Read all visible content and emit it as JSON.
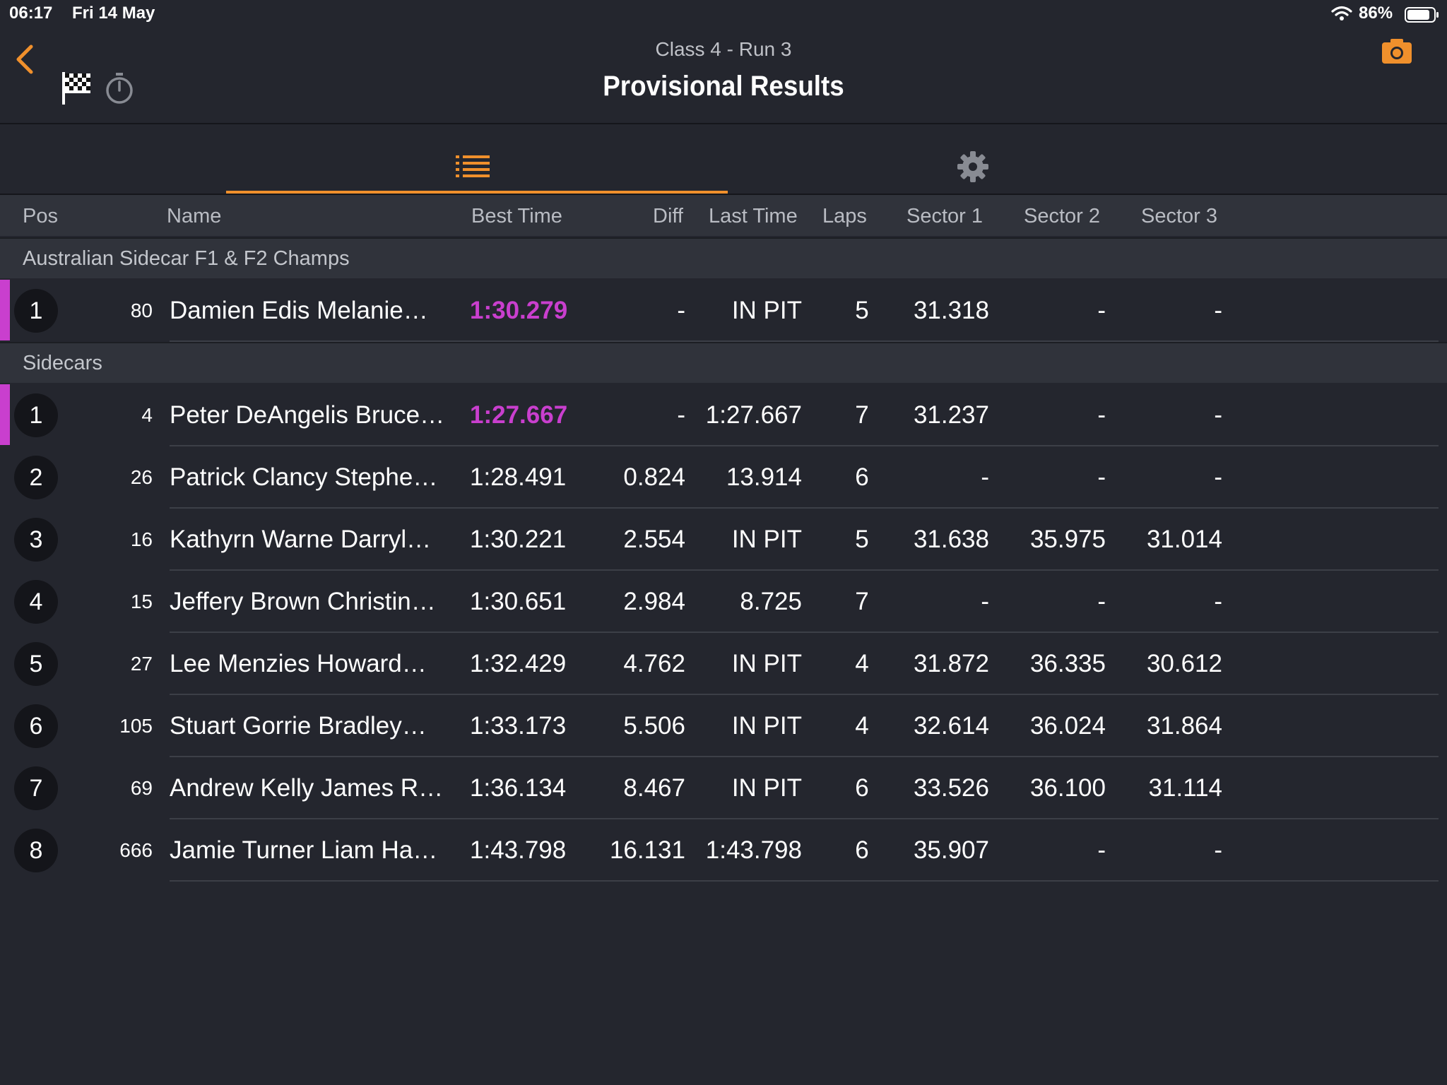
{
  "status_bar": {
    "time": "06:17",
    "date": "Fri 14 May",
    "battery": "86%"
  },
  "header": {
    "subtitle": "Class 4 - Run 3",
    "title": "Provisional Results"
  },
  "columns": {
    "pos": "Pos",
    "name": "Name",
    "best": "Best Time",
    "diff": "Diff",
    "last": "Last Time",
    "laps": "Laps",
    "s1": "Sector 1",
    "s2": "Sector 2",
    "s3": "Sector 3"
  },
  "colors": {
    "accent": "#f0902c",
    "best_lap": "#c93fce"
  },
  "groups": [
    {
      "name": "Australian Sidecar F1 & F2 Champs",
      "rows": [
        {
          "pos": "1",
          "num": "80",
          "name": "Damien Edis Melanie…",
          "best": "1:30.279",
          "diff": "-",
          "last": "IN PIT",
          "laps": "5",
          "s1": "31.318",
          "s2": "-",
          "s3": "-",
          "fastest": true
        }
      ]
    },
    {
      "name": "Sidecars",
      "rows": [
        {
          "pos": "1",
          "num": "4",
          "name": "Peter DeAngelis Bruce…",
          "best": "1:27.667",
          "diff": "-",
          "last": "1:27.667",
          "laps": "7",
          "s1": "31.237",
          "s2": "-",
          "s3": "-",
          "fastest": true
        },
        {
          "pos": "2",
          "num": "26",
          "name": "Patrick Clancy Stephe…",
          "best": "1:28.491",
          "diff": "0.824",
          "last": "13.914",
          "laps": "6",
          "s1": "-",
          "s2": "-",
          "s3": "-",
          "fastest": false
        },
        {
          "pos": "3",
          "num": "16",
          "name": "Kathyrn Warne Darryl…",
          "best": "1:30.221",
          "diff": "2.554",
          "last": "IN PIT",
          "laps": "5",
          "s1": "31.638",
          "s2": "35.975",
          "s3": "31.014",
          "fastest": false
        },
        {
          "pos": "4",
          "num": "15",
          "name": "Jeffery Brown Christin…",
          "best": "1:30.651",
          "diff": "2.984",
          "last": "8.725",
          "laps": "7",
          "s1": "-",
          "s2": "-",
          "s3": "-",
          "fastest": false
        },
        {
          "pos": "5",
          "num": "27",
          "name": "Lee Menzies Howard…",
          "best": "1:32.429",
          "diff": "4.762",
          "last": "IN PIT",
          "laps": "4",
          "s1": "31.872",
          "s2": "36.335",
          "s3": "30.612",
          "fastest": false
        },
        {
          "pos": "6",
          "num": "105",
          "name": "Stuart Gorrie Bradley…",
          "best": "1:33.173",
          "diff": "5.506",
          "last": "IN PIT",
          "laps": "4",
          "s1": "32.614",
          "s2": "36.024",
          "s3": "31.864",
          "fastest": false
        },
        {
          "pos": "7",
          "num": "69",
          "name": "Andrew Kelly James R…",
          "best": "1:36.134",
          "diff": "8.467",
          "last": "IN PIT",
          "laps": "6",
          "s1": "33.526",
          "s2": "36.100",
          "s3": "31.114",
          "fastest": false
        },
        {
          "pos": "8",
          "num": "666",
          "name": "Jamie Turner Liam Ha…",
          "best": "1:43.798",
          "diff": "16.131",
          "last": "1:43.798",
          "laps": "6",
          "s1": "35.907",
          "s2": "-",
          "s3": "-",
          "fastest": false
        }
      ]
    }
  ]
}
